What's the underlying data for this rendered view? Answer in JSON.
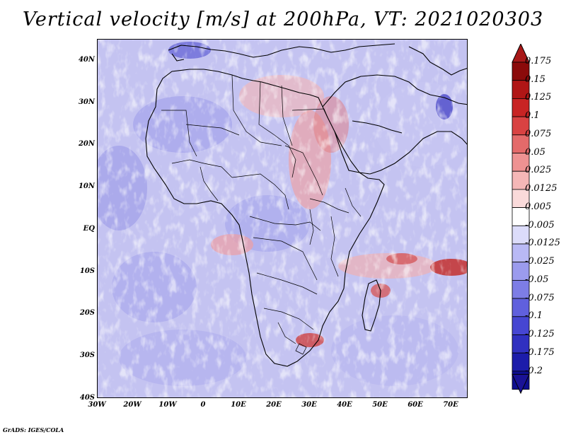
{
  "title": "Vertical velocity [m/s] at 200hPa, VT: 2021020303",
  "map": {
    "lat_labels": [
      "40N",
      "30N",
      "20N",
      "10N",
      "EQ",
      "10S",
      "20S",
      "30S",
      "40S"
    ],
    "lon_labels": [
      "30W",
      "20W",
      "10W",
      "0",
      "10E",
      "20E",
      "30E",
      "40E",
      "50E",
      "60E",
      "70E"
    ]
  },
  "colorbar": {
    "labels": [
      "0.175",
      "0.15",
      "0.125",
      "0.1",
      "0.075",
      "0.05",
      "0.025",
      "0.0125",
      "0.005",
      "-0.005",
      "-0.0125",
      "-0.025",
      "-0.05",
      "-0.075",
      "-0.1",
      "-0.125",
      "-0.175",
      "-0.2"
    ],
    "colors": [
      "#8b0a0a",
      "#b01616",
      "#c82424",
      "#d94242",
      "#e46a6a",
      "#ee9292",
      "#f5b7b7",
      "#fadada",
      "#ffffff",
      "#dcdcfa",
      "#b9b9f5",
      "#9b9bee",
      "#7d7de6",
      "#6060dd",
      "#4646d2",
      "#3030c0",
      "#1c1caa",
      "#0e0e90"
    ],
    "max_arrow_color": "#a81818",
    "min_arrow_color": "#1a1296"
  },
  "credit": "GrADS: IGES/COLA"
}
